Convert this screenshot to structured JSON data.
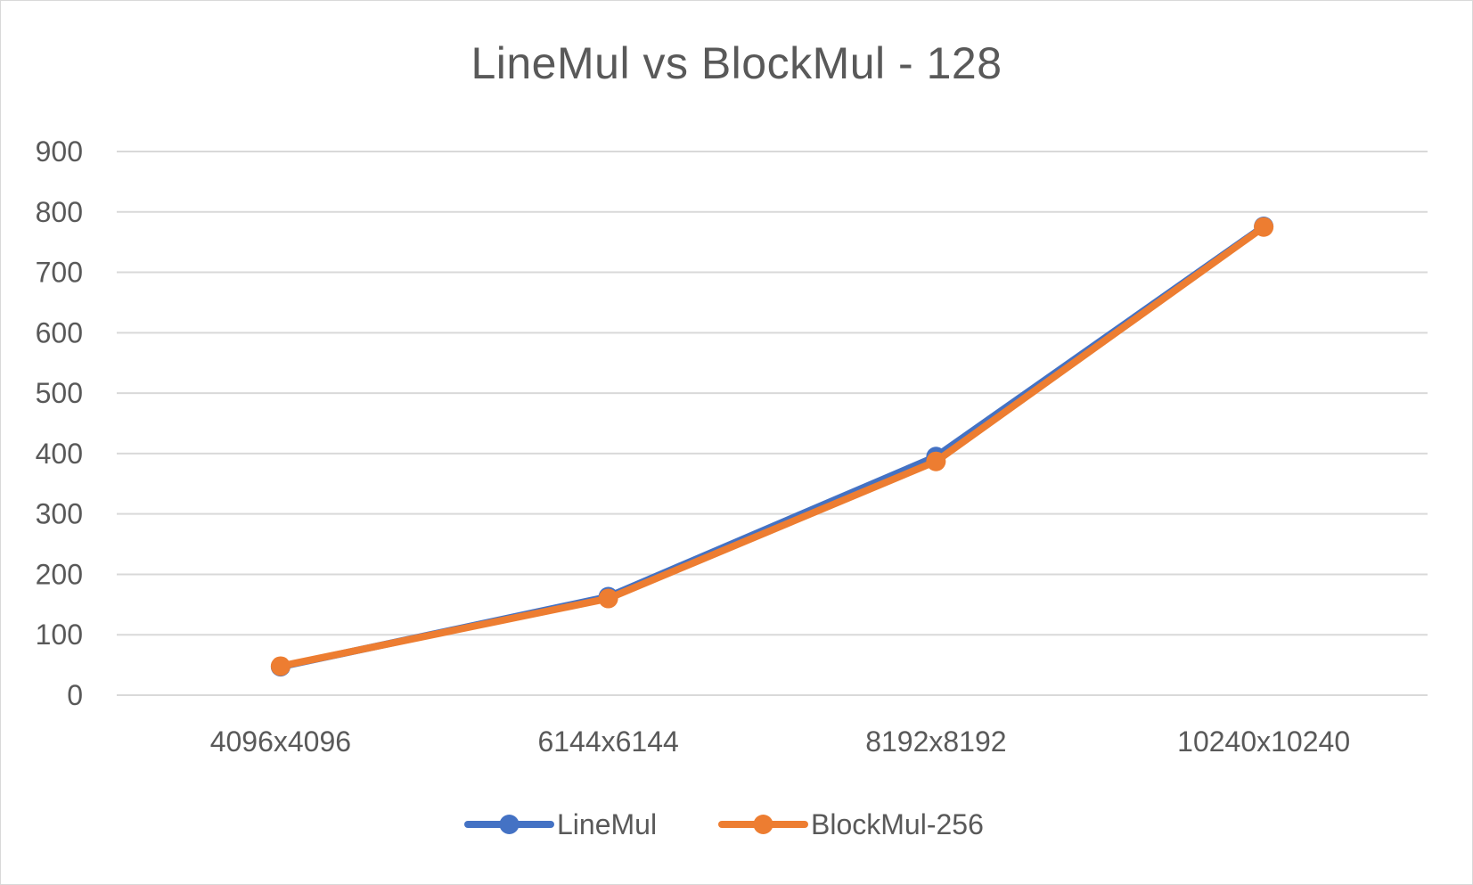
{
  "chart_data": {
    "type": "line",
    "title": "LineMul vs BlockMul - 128",
    "xlabel": "",
    "ylabel": "",
    "categories": [
      "4096x4096",
      "6144x6144",
      "8192x8192",
      "10240x10240"
    ],
    "ylim": [
      0,
      900
    ],
    "yticks": [
      "0",
      "100",
      "200",
      "300",
      "400",
      "500",
      "600",
      "700",
      "800",
      "900"
    ],
    "grid": true,
    "legend_position": "bottom",
    "series": [
      {
        "name": "LineMul",
        "values": [
          47,
          163,
          395,
          776
        ],
        "color": "#4472C4"
      },
      {
        "name": "BlockMul-256",
        "values": [
          48,
          160,
          387,
          775
        ],
        "color": "#ED7D31"
      }
    ]
  }
}
